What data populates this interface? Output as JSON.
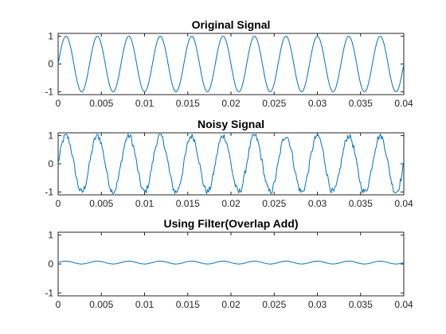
{
  "chart_data": [
    {
      "type": "line",
      "title": "Original Signal",
      "xlabel": "",
      "ylabel": "",
      "xlim": [
        0,
        0.04
      ],
      "ylim": [
        -1.1,
        1.1
      ],
      "xticks": [
        0,
        0.005,
        0.01,
        0.015,
        0.02,
        0.025,
        0.03,
        0.035,
        0.04
      ],
      "xtick_labels": [
        "0",
        "0.005",
        "0.01",
        "0.015",
        "0.02",
        "0.025",
        "0.03",
        "0.035",
        "0.04"
      ],
      "yticks": [
        -1,
        0,
        1
      ],
      "ytick_labels": [
        "-1",
        "0",
        "1"
      ],
      "grid": false,
      "color": "#0072bd",
      "series": [
        {
          "x_start": 0,
          "x_end": 0.04,
          "sample_rate_hz": 10000,
          "signal": "sine",
          "frequency_hz": 275,
          "amplitude": 1,
          "noise_amplitude": 0
        }
      ]
    },
    {
      "type": "line",
      "title": "Noisy Signal",
      "xlabel": "",
      "ylabel": "",
      "xlim": [
        0,
        0.04
      ],
      "ylim": [
        -1.1,
        1.1
      ],
      "xticks": [
        0,
        0.005,
        0.01,
        0.015,
        0.02,
        0.025,
        0.03,
        0.035,
        0.04
      ],
      "xtick_labels": [
        "0",
        "0.005",
        "0.01",
        "0.015",
        "0.02",
        "0.025",
        "0.03",
        "0.035",
        "0.04"
      ],
      "yticks": [
        -1,
        0,
        1
      ],
      "ytick_labels": [
        "-1",
        "0",
        "1"
      ],
      "grid": false,
      "color": "#0072bd",
      "series": [
        {
          "x_start": 0,
          "x_end": 0.04,
          "sample_rate_hz": 10000,
          "signal": "sine+noise",
          "frequency_hz": 275,
          "amplitude": 1,
          "noise_amplitude": 0.12,
          "clip": [
            -1.05,
            1.05
          ]
        }
      ]
    },
    {
      "type": "line",
      "title": "Using Filter(Overlap Add)",
      "xlabel": "",
      "ylabel": "",
      "xlim": [
        0,
        0.04
      ],
      "ylim": [
        -1.1,
        1.1
      ],
      "xticks": [
        0,
        0.005,
        0.01,
        0.015,
        0.02,
        0.025,
        0.03,
        0.035,
        0.04
      ],
      "xtick_labels": [
        "0",
        "0.005",
        "0.01",
        "0.015",
        "0.02",
        "0.025",
        "0.03",
        "0.035",
        "0.04"
      ],
      "yticks": [
        -1,
        0,
        1
      ],
      "ytick_labels": [
        "-1",
        "0",
        "1"
      ],
      "grid": false,
      "color": "#0072bd",
      "series": [
        {
          "x_start": 0,
          "x_end": 0.04,
          "sample_rate_hz": 10000,
          "signal": "sine",
          "frequency_hz": 275,
          "amplitude": 0.05,
          "offset": 0.05,
          "noise_amplitude": 0
        }
      ]
    }
  ]
}
